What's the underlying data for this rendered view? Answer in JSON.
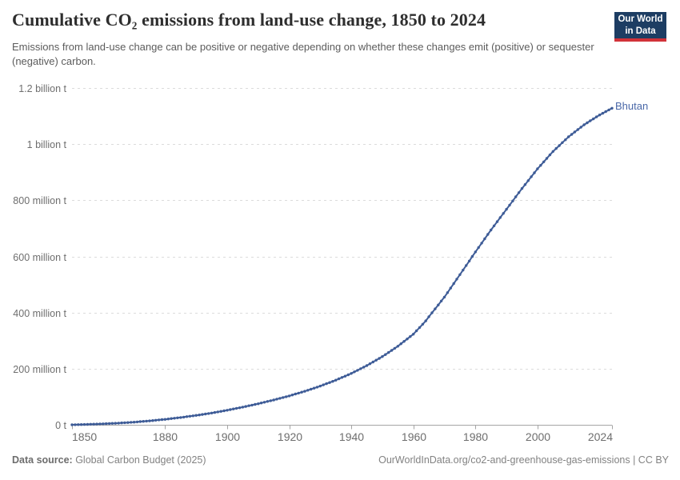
{
  "header": {
    "title": "Cumulative CO₂ emissions from land-use change, 1850 to 2024",
    "subtitle": "Emissions from land-use change can be positive or negative depending on whether these changes emit (positive) or sequester (negative) carbon.",
    "logo": {
      "line1": "Our World",
      "line2": "in Data",
      "bg_color": "#1d3d63",
      "accent_color": "#d13239"
    }
  },
  "chart_data": {
    "type": "line",
    "title": "Cumulative CO₂ emissions from land-use change, 1850 to 2024",
    "xlim": [
      1850,
      2024
    ],
    "ylim_million_t": [
      0,
      1200
    ],
    "grid": "horizontal-dashed",
    "legend_position": "end-of-line-label",
    "x_ticks": [
      1850,
      1880,
      1900,
      1920,
      1940,
      1960,
      1980,
      2000,
      2024
    ],
    "y_ticks": [
      {
        "value": 0,
        "label": "0 t"
      },
      {
        "value": 200,
        "label": "200 million t"
      },
      {
        "value": 400,
        "label": "400 million t"
      },
      {
        "value": 600,
        "label": "600 million t"
      },
      {
        "value": 800,
        "label": "800 million t"
      },
      {
        "value": 1000,
        "label": "1 billion t"
      },
      {
        "value": 1200,
        "label": "1.2 billion t"
      }
    ],
    "series": [
      {
        "name": "Bhutan",
        "color": "#3e5c97",
        "start_year": 1850,
        "end_year": 2024,
        "values_million_t": [
          0,
          0.3,
          0.6,
          0.9,
          1.2,
          1.5,
          1.9,
          2.3,
          2.7,
          3.1,
          3.5,
          4,
          4.5,
          5,
          5.5,
          6,
          6.7,
          7.4,
          8.1,
          8.8,
          9.5,
          10.4,
          11.3,
          12.2,
          13.1,
          14,
          15.1,
          16.2,
          17.3,
          18.4,
          19.5,
          20.8,
          22.1,
          23.4,
          24.7,
          26,
          27.5,
          29,
          30.5,
          32,
          33.5,
          35.2,
          36.9,
          38.6,
          40.3,
          42,
          44,
          46,
          48,
          50,
          52,
          54.2,
          56.4,
          58.6,
          60.8,
          63,
          65.4,
          67.8,
          70.2,
          72.6,
          75,
          77.7,
          80.4,
          83.1,
          85.8,
          88.5,
          91.4,
          94.3,
          97.2,
          100.1,
          103,
          106.3,
          109.6,
          112.9,
          116.2,
          119.5,
          123.2,
          126.9,
          130.6,
          134.3,
          138,
          142.2,
          146.4,
          150.6,
          154.8,
          159,
          163.8,
          168.6,
          173.4,
          178.2,
          183,
          188.6,
          194.2,
          199.8,
          205.4,
          211,
          217.4,
          223.8,
          230.2,
          236.6,
          243,
          250.4,
          257.8,
          265.2,
          272.6,
          280,
          288.6,
          297.2,
          305.8,
          314.4,
          323,
          334.8,
          346.6,
          358.4,
          370.2,
          385,
          399,
          413,
          427,
          441,
          455,
          471,
          487,
          503,
          519,
          535,
          551.2,
          567.4,
          583.6,
          599.8,
          616,
          631.6,
          647.2,
          662.8,
          678.4,
          694,
          708.8,
          723.6,
          738.4,
          753.2,
          768,
          782.8,
          797.6,
          812.4,
          827.2,
          842,
          856,
          870,
          884,
          898,
          912,
          924.4,
          936.8,
          949.2,
          961.6,
          974,
          984.4,
          994.8,
          1005.2,
          1015.6,
          1026,
          1034.6,
          1043.2,
          1051.8,
          1060.4,
          1069,
          1076,
          1083,
          1090,
          1097,
          1104,
          1110,
          1116,
          1122,
          1128
        ]
      }
    ]
  },
  "footer": {
    "source_label": "Data source:",
    "source_value": " Global Carbon Budget (2025)",
    "credit": "OurWorldInData.org/co2-and-greenhouse-gas-emissions | CC BY"
  }
}
